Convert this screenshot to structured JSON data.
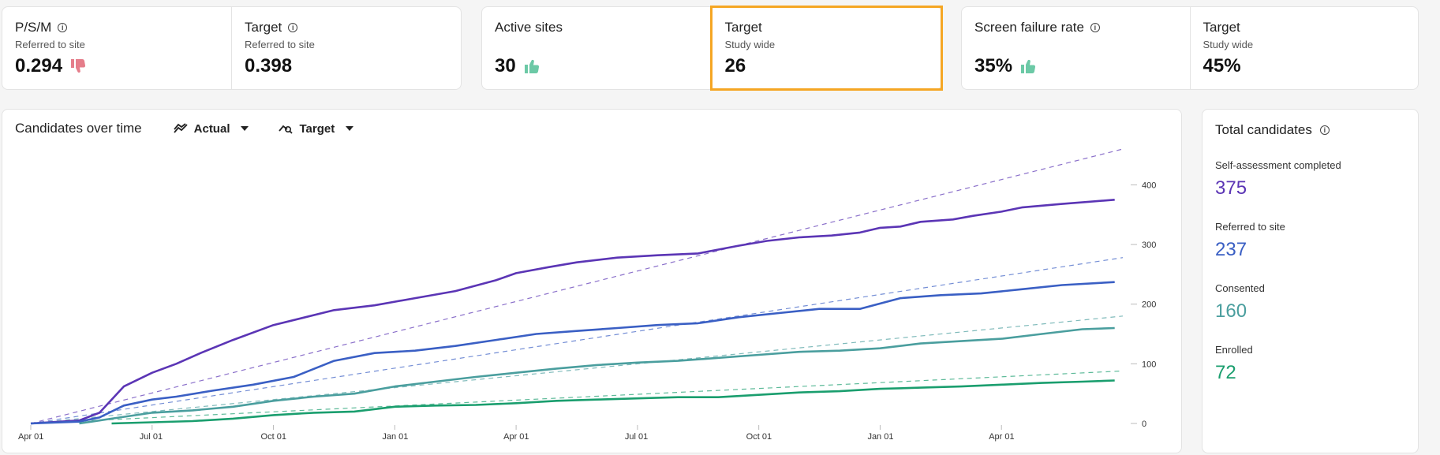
{
  "kpis": [
    {
      "group": "psm",
      "items": [
        {
          "title": "P/S/M",
          "sub": "Referred to site",
          "value": "0.294",
          "thumb": "down",
          "info": true
        },
        {
          "title": "Target",
          "sub": "Referred to site",
          "value": "0.398",
          "thumb": null,
          "info": true
        }
      ]
    },
    {
      "group": "sites",
      "items": [
        {
          "title": "Active sites",
          "sub": "",
          "value": "30",
          "thumb": "up",
          "info": false
        },
        {
          "title": "Target",
          "sub": "Study wide",
          "value": "26",
          "thumb": null,
          "info": false
        }
      ]
    },
    {
      "group": "screen",
      "items": [
        {
          "title": "Screen failure rate",
          "sub": "",
          "value": "35%",
          "thumb": "up",
          "info": true
        },
        {
          "title": "Target",
          "sub": "Study wide",
          "value": "45%",
          "thumb": null,
          "info": false
        }
      ]
    }
  ],
  "chart_header": {
    "title": "Candidates over time",
    "actual_label": "Actual",
    "target_label": "Target"
  },
  "colors": {
    "self_assessment": "#5b35b5",
    "referred": "#3a5fc4",
    "consented": "#4a9e9e",
    "enrolled": "#1a9e6e",
    "thumb_down": "#e57d8a",
    "thumb_up": "#6cc9a6",
    "highlight": "#f5a623"
  },
  "chart_data": {
    "type": "line",
    "x_ticks": [
      "Apr 01",
      "Jul 01",
      "Oct 01",
      "Jan 01",
      "Apr 01",
      "Jul 01",
      "Oct 01",
      "Jan 01",
      "Apr 01"
    ],
    "y_ticks": [
      "0",
      "100",
      "200",
      "300",
      "400"
    ],
    "ylim": [
      0,
      460
    ],
    "x_range_months": [
      0,
      27
    ],
    "series": [
      {
        "name": "Self-assessment completed",
        "color": "#5b35b5",
        "x": [
          0,
          1.2,
          1.7,
          2.3,
          3,
          3.6,
          4.2,
          5,
          6,
          7.5,
          8.5,
          9.5,
          10.5,
          11.5,
          12,
          12.8,
          13.5,
          14.5,
          15.5,
          16.5,
          17.5,
          18.2,
          19,
          19.8,
          20.5,
          21,
          21.5,
          22,
          22.8,
          23.3,
          24,
          24.5,
          25.5,
          26.8
        ],
        "values": [
          0,
          5,
          18,
          62,
          85,
          100,
          118,
          140,
          165,
          190,
          198,
          210,
          222,
          240,
          252,
          262,
          270,
          278,
          282,
          285,
          298,
          306,
          312,
          315,
          320,
          328,
          330,
          338,
          342,
          348,
          355,
          362,
          368,
          375
        ],
        "target": [
          0,
          460
        ]
      },
      {
        "name": "Referred to site",
        "color": "#3a5fc4",
        "x": [
          0,
          1.2,
          1.7,
          2.3,
          3,
          3.6,
          4.5,
          5.5,
          6.5,
          7.5,
          8.5,
          9.5,
          10.5,
          11.5,
          12.5,
          13.5,
          14.5,
          15.5,
          16.5,
          17.5,
          18.5,
          19.5,
          20.5,
          21.5,
          22.5,
          23.5,
          24.5,
          25.5,
          26.8
        ],
        "values": [
          0,
          3,
          10,
          30,
          40,
          45,
          55,
          65,
          78,
          105,
          118,
          122,
          130,
          140,
          150,
          155,
          160,
          165,
          168,
          178,
          185,
          192,
          192,
          210,
          215,
          218,
          225,
          232,
          237
        ],
        "target": [
          0,
          278
        ]
      },
      {
        "name": "Consented",
        "color": "#4a9e9e",
        "x": [
          1.2,
          2,
          3,
          4,
          5,
          6,
          7,
          8,
          9,
          10,
          11,
          12,
          13,
          14,
          15,
          16,
          17,
          18,
          19,
          20,
          21,
          22,
          23,
          24,
          25,
          26,
          26.8
        ],
        "values": [
          0,
          8,
          18,
          22,
          28,
          38,
          45,
          50,
          62,
          70,
          78,
          85,
          92,
          98,
          102,
          105,
          110,
          115,
          120,
          122,
          126,
          134,
          138,
          142,
          150,
          158,
          160
        ],
        "target": [
          0,
          180
        ]
      },
      {
        "name": "Enrolled",
        "color": "#1a9e6e",
        "x": [
          2,
          3,
          4,
          5,
          6,
          7,
          8,
          9,
          10,
          11,
          12,
          13,
          14,
          15,
          16,
          17,
          18,
          19,
          20,
          21,
          22,
          23,
          24,
          25,
          26,
          26.8
        ],
        "values": [
          0,
          2,
          4,
          8,
          14,
          18,
          20,
          28,
          30,
          31,
          34,
          38,
          40,
          42,
          44,
          44,
          48,
          52,
          54,
          58,
          60,
          62,
          65,
          68,
          70,
          72
        ],
        "target": [
          0,
          88
        ]
      }
    ]
  },
  "totals": {
    "title": "Total candidates",
    "items": [
      {
        "label": "Self-assessment completed",
        "value": "375",
        "color": "#5b35b5"
      },
      {
        "label": "Referred to site",
        "value": "237",
        "color": "#3a5fc4"
      },
      {
        "label": "Consented",
        "value": "160",
        "color": "#4a9e9e"
      },
      {
        "label": "Enrolled",
        "value": "72",
        "color": "#1a9e6e"
      }
    ]
  }
}
